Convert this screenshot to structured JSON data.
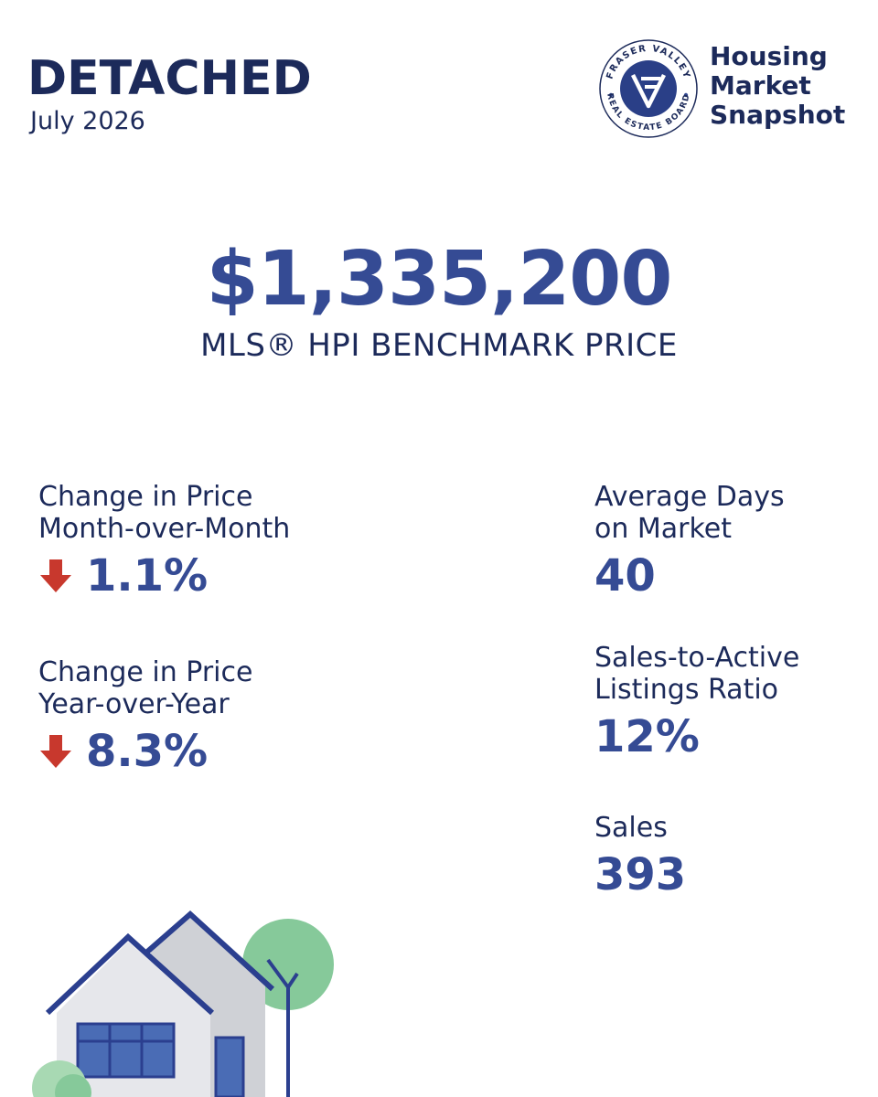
{
  "colors": {
    "navy": "#1c2a5a",
    "blue": "#354b94",
    "arrow_red": "#c8382d",
    "logo_circle": "#2a3f87",
    "house_roof": "#2b3f8f",
    "house_wall_light": "#e6e7eb",
    "house_wall_gray": "#cfd1d6",
    "window_blue": "#4a6cb5",
    "tree_green": "#86c99a"
  },
  "header": {
    "title": "DETACHED",
    "period": "July 2026"
  },
  "logo": {
    "ring_top": "FRASER VALLEY",
    "ring_bottom": "REAL ESTATE BOARD",
    "line1": "Housing",
    "line2": "Market",
    "line3": "Snapshot"
  },
  "hero": {
    "price": "$1,335,200",
    "label": "MLS® HPI BENCHMARK PRICE"
  },
  "stats_left": [
    {
      "label_line1": "Change in Price",
      "label_line2": "Month-over-Month",
      "value": "1.1%",
      "direction": "down",
      "icon": "arrow-down-icon"
    },
    {
      "label_line1": "Change in Price",
      "label_line2": "Year-over-Year",
      "value": "8.3%",
      "direction": "down",
      "icon": "arrow-down-icon"
    }
  ],
  "stats_right": [
    {
      "label_line1": "Average Days",
      "label_line2": "on Market",
      "value": "40"
    },
    {
      "label_line1": "Sales-to-Active",
      "label_line2": "Listings Ratio",
      "value": "12%"
    },
    {
      "label_line1": "Sales",
      "value": "393"
    }
  ],
  "illustration": {
    "icon": "house-illustration"
  }
}
